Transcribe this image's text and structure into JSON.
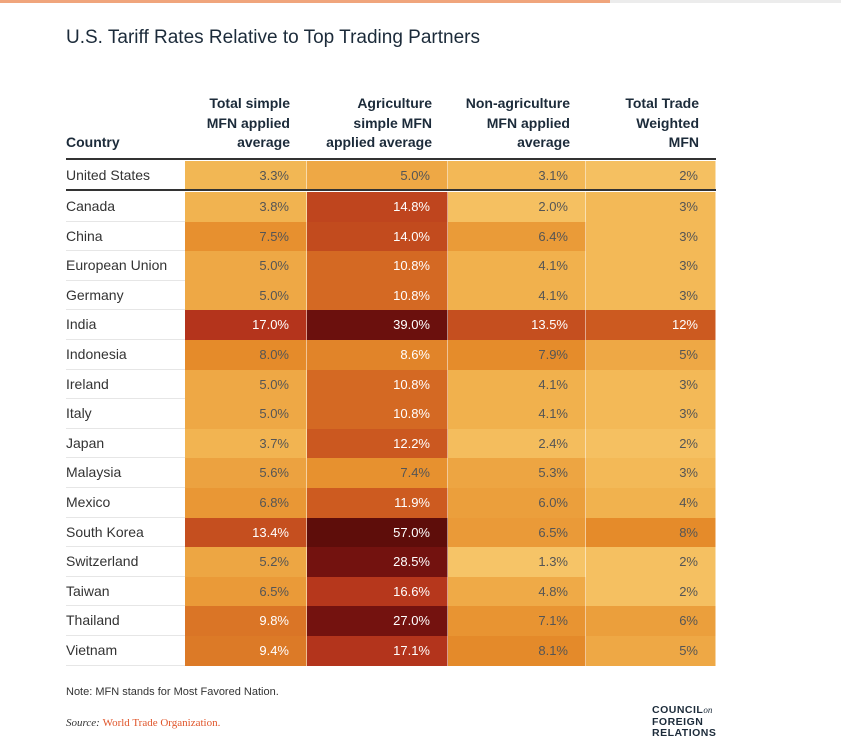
{
  "colors": {
    "low": "#f8cd73",
    "mid": "#e58b2a",
    "high": "#c4491c",
    "very_high": "#74120f",
    "text_dark": "#555555",
    "text_light": "#ffffff",
    "accent": "#e0552a"
  },
  "chart_data": {
    "type": "table",
    "title": "U.S. Tariff Rates Relative to Top Trading Partners",
    "columns": [
      "Country",
      "Total simple MFN applied average",
      "Agriculture simple MFN applied average",
      "Non-agriculture MFN applied average",
      "Total Trade Weighted MFN"
    ],
    "rows": [
      {
        "country": "United States",
        "values": [
          "3.3%",
          "5.0%",
          "3.1%",
          "2%"
        ]
      },
      {
        "country": "Canada",
        "values": [
          "3.8%",
          "14.8%",
          "2.0%",
          "3%"
        ]
      },
      {
        "country": "China",
        "values": [
          "7.5%",
          "14.0%",
          "6.4%",
          "3%"
        ]
      },
      {
        "country": "European Union",
        "values": [
          "5.0%",
          "10.8%",
          "4.1%",
          "3%"
        ]
      },
      {
        "country": "Germany",
        "values": [
          "5.0%",
          "10.8%",
          "4.1%",
          "3%"
        ]
      },
      {
        "country": "India",
        "values": [
          "17.0%",
          "39.0%",
          "13.5%",
          "12%"
        ]
      },
      {
        "country": "Indonesia",
        "values": [
          "8.0%",
          "8.6%",
          "7.9%",
          "5%"
        ]
      },
      {
        "country": "Ireland",
        "values": [
          "5.0%",
          "10.8%",
          "4.1%",
          "3%"
        ]
      },
      {
        "country": "Italy",
        "values": [
          "5.0%",
          "10.8%",
          "4.1%",
          "3%"
        ]
      },
      {
        "country": "Japan",
        "values": [
          "3.7%",
          "12.2%",
          "2.4%",
          "2%"
        ]
      },
      {
        "country": "Malaysia",
        "values": [
          "5.6%",
          "7.4%",
          "5.3%",
          "3%"
        ]
      },
      {
        "country": "Mexico",
        "values": [
          "6.8%",
          "11.9%",
          "6.0%",
          "4%"
        ]
      },
      {
        "country": "South Korea",
        "values": [
          "13.4%",
          "57.0%",
          "6.5%",
          "8%"
        ]
      },
      {
        "country": "Switzerland",
        "values": [
          "5.2%",
          "28.5%",
          "1.3%",
          "2%"
        ]
      },
      {
        "country": "Taiwan",
        "values": [
          "6.5%",
          "16.6%",
          "4.8%",
          "2%"
        ]
      },
      {
        "country": "Thailand",
        "values": [
          "9.8%",
          "27.0%",
          "7.1%",
          "6%"
        ]
      },
      {
        "country": "Vietnam",
        "values": [
          "9.4%",
          "17.1%",
          "8.1%",
          "5%"
        ]
      }
    ],
    "color_scale": "heatmap by value (light yellow low to dark red high)"
  },
  "header_lines": {
    "country": [
      "Country"
    ],
    "col1": [
      "Total simple",
      "MFN applied",
      "average"
    ],
    "col2": [
      "Agriculture",
      "simple MFN",
      "applied average"
    ],
    "col3": [
      "Non-agriculture",
      "MFN applied",
      "average"
    ],
    "col4": [
      "Total Trade",
      "Weighted",
      "MFN"
    ]
  },
  "footer": {
    "note": "Note: MFN stands for Most Favored Nation.",
    "source_prefix": "Source: ",
    "source_link": "World Trade Organization."
  },
  "logo": {
    "line1": "COUNCIL",
    "on": "on",
    "line2": "FOREIGN",
    "line3": "RELATIONS"
  }
}
